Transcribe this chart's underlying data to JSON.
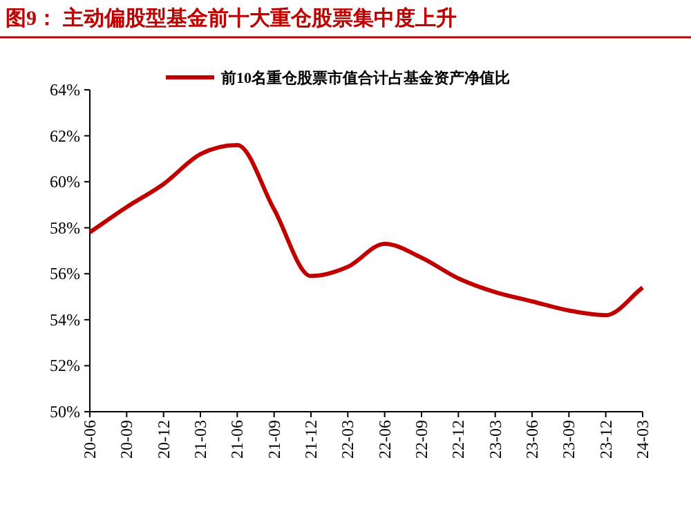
{
  "chart_data": {
    "type": "line",
    "title": "图9：  主动偏股型基金前十大重仓股票集中度上升",
    "categories": [
      "20-06",
      "20-09",
      "20-12",
      "21-03",
      "21-06",
      "21-09",
      "21-12",
      "22-03",
      "22-06",
      "22-09",
      "22-12",
      "23-03",
      "23-06",
      "23-09",
      "23-12",
      "24-03"
    ],
    "series": [
      {
        "name": "前10名重仓股票市值合计占基金资产净值比",
        "color": "#c00000",
        "values": [
          57.8,
          58.9,
          59.9,
          61.2,
          61.6,
          58.8,
          55.9,
          56.3,
          57.3,
          56.7,
          55.8,
          55.2,
          54.8,
          54.4,
          54.2,
          55.4
        ]
      }
    ],
    "ylim": [
      50,
      64
    ],
    "yticks": [
      {
        "value": 50,
        "label": "50%"
      },
      {
        "value": 52,
        "label": "52%"
      },
      {
        "value": 54,
        "label": "54%"
      },
      {
        "value": 56,
        "label": "56%"
      },
      {
        "value": 58,
        "label": "58%"
      },
      {
        "value": 60,
        "label": "60%"
      },
      {
        "value": 62,
        "label": "62%"
      },
      {
        "value": 64,
        "label": "64%"
      }
    ],
    "legend": "top",
    "grid": false,
    "marker": "none",
    "line_style": "solid"
  }
}
